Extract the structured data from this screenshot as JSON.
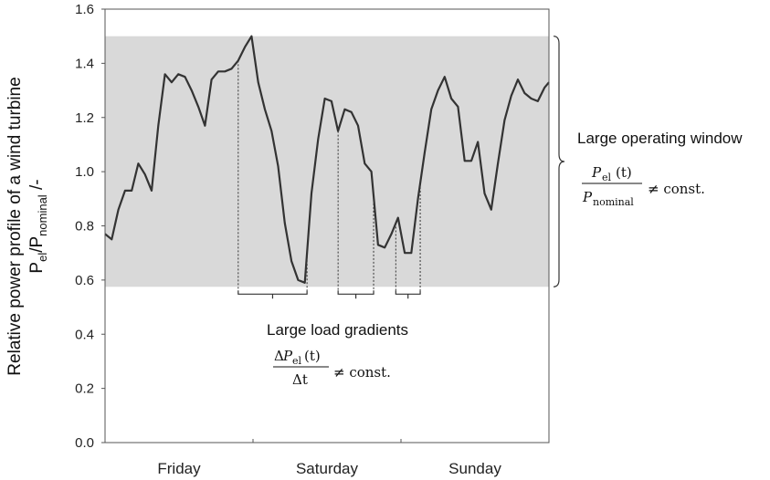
{
  "chart_data": {
    "type": "line",
    "ylabel_line1": "Relative power profile of a wind turbine",
    "ylabel_line2": {
      "p1": "P",
      "sub1": "el",
      "sep": "/P",
      "sub2": "nominal",
      "tail": " /-"
    },
    "ylim": [
      0,
      1.6
    ],
    "yticks": [
      "0.0",
      "0.2",
      "0.4",
      "0.6",
      "0.8",
      "1.0",
      "1.2",
      "1.4",
      "1.6"
    ],
    "categories": [
      "Friday",
      "Saturday",
      "Sunday"
    ],
    "x_range": [
      0,
      100
    ],
    "series": [
      {
        "x": [
          0,
          1.5,
          3,
          4.5,
          6,
          7.5,
          9,
          10.5,
          12,
          13.5,
          15,
          16.5,
          18,
          19.5,
          21,
          22.5,
          24,
          25.5,
          27,
          28.5,
          30,
          31.5,
          33,
          34.5,
          36,
          37.5,
          39,
          40.5,
          42,
          43.5,
          45,
          46.5,
          48,
          49.5,
          51,
          52.5,
          54,
          55.5,
          57,
          58.5,
          60,
          61.5,
          63,
          64.5,
          66,
          67.5,
          69,
          70.5,
          72,
          73.5,
          75,
          76.5,
          78,
          79.5,
          81,
          82.5,
          84,
          85.5,
          87,
          88.5,
          90,
          91.5,
          93,
          94.5,
          96,
          97.5,
          99,
          100
        ],
        "values": [
          0.77,
          0.75,
          0.86,
          0.93,
          0.93,
          1.03,
          0.99,
          0.93,
          1.17,
          1.36,
          1.33,
          1.36,
          1.35,
          1.3,
          1.24,
          1.17,
          1.34,
          1.37,
          1.37,
          1.38,
          1.41,
          1.46,
          1.5,
          1.33,
          1.23,
          1.15,
          1.02,
          0.81,
          0.67,
          0.6,
          0.59,
          0.92,
          1.12,
          1.27,
          1.26,
          1.15,
          1.23,
          1.22,
          1.17,
          1.03,
          1.0,
          0.73,
          0.72,
          0.77,
          0.83,
          0.7,
          0.7,
          0.9,
          1.07,
          1.23,
          1.3,
          1.35,
          1.27,
          1.24,
          1.04,
          1.04,
          1.11,
          0.92,
          0.86,
          1.03,
          1.19,
          1.28,
          1.34,
          1.29,
          1.27,
          1.26,
          1.31,
          1.33
        ]
      }
    ],
    "operating_window": [
      0.575,
      1.5
    ],
    "gradient_brackets": [
      [
        30,
        45.5
      ],
      [
        52.5,
        60.5
      ],
      [
        65.5,
        71
      ]
    ],
    "annotations": {
      "window_label": "Large operating window",
      "window_formula": {
        "num_p": "P",
        "num_sub": "el",
        "num_arg": "(t)",
        "den_p": "P",
        "den_sub": "nominal",
        "rel": "≠ const."
      },
      "gradient_label": "Large load gradients",
      "gradient_formula": {
        "num_delta": "Δ",
        "num_p": "P",
        "num_sub": "el",
        "num_arg": "(t)",
        "den": "Δt",
        "rel": "≠ const."
      }
    },
    "colors": {
      "band": "#d9d9d9",
      "line": "#333333",
      "axis": "#555555"
    }
  }
}
